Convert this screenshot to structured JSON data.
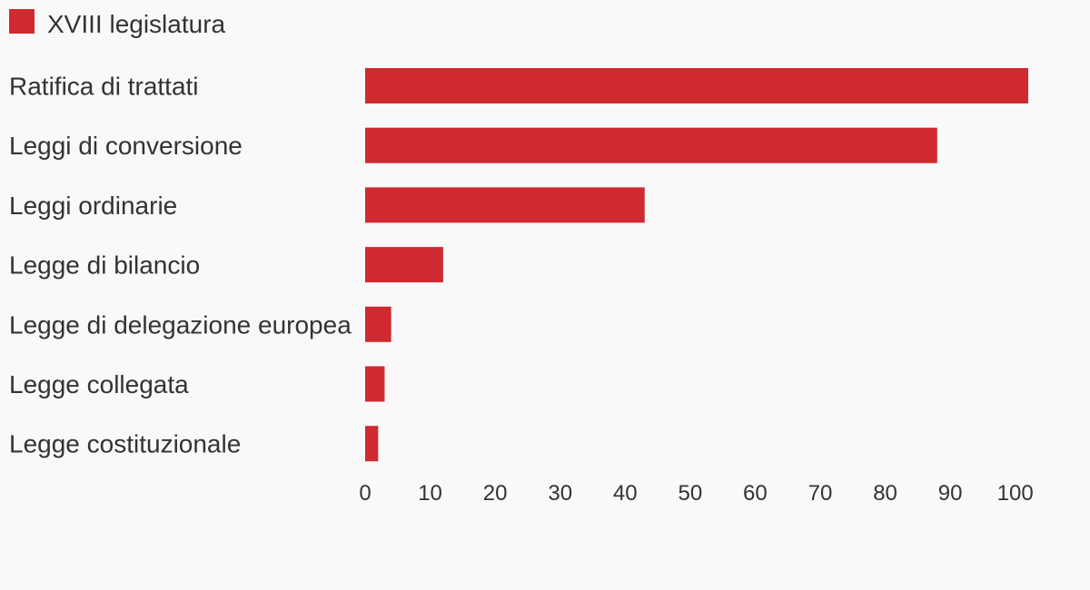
{
  "chart_data": {
    "type": "bar",
    "orientation": "horizontal",
    "categories": [
      "Ratifica di trattati",
      "Leggi di conversione",
      "Leggi ordinarie",
      "Legge di bilancio",
      "Legge di delegazione europea",
      "Legge collegata",
      "Legge costituzionale"
    ],
    "series": [
      {
        "name": "XVIII legislatura",
        "color": "#cf2a30",
        "values": [
          102,
          88,
          43,
          12,
          4,
          3,
          2
        ]
      }
    ],
    "xlim": [
      0,
      102
    ],
    "xticks": [
      0,
      10,
      20,
      30,
      40,
      50,
      60,
      70,
      80,
      90,
      100
    ],
    "grid": false,
    "legend_position": "top-left",
    "title": "",
    "xlabel": "",
    "ylabel": ""
  }
}
